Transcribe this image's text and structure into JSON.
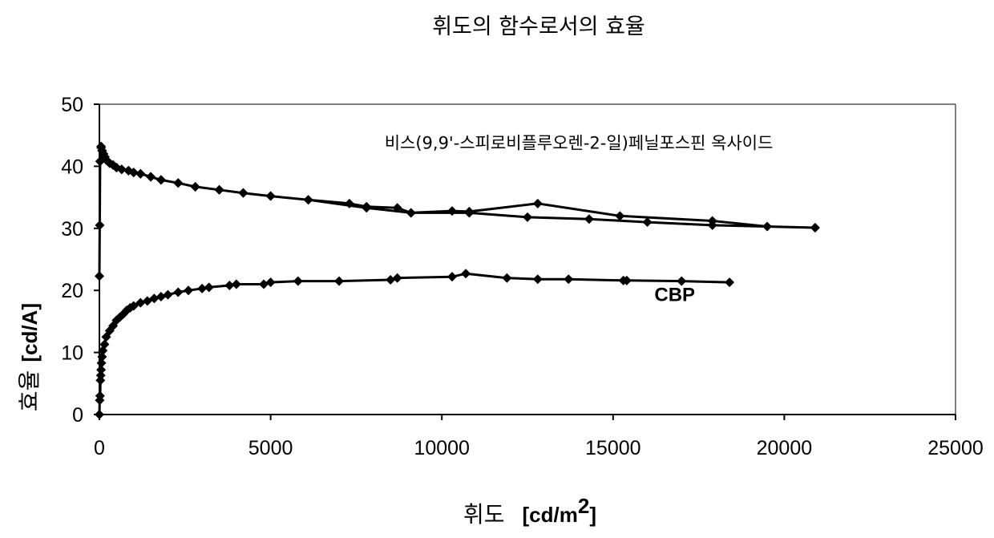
{
  "chart_data": {
    "type": "line",
    "title": "휘도의 함수로서의 효율",
    "xlabel": "휘도",
    "xlabel_unit": "[cd/m",
    "xlabel_unit_sup": "2",
    "xlabel_unit_end": "]",
    "ylabel": "효율",
    "ylabel_unit": "[cd/A]",
    "xlim": [
      0,
      25000
    ],
    "ylim": [
      0,
      50
    ],
    "xticks": [
      "0",
      "5000",
      "10000",
      "15000",
      "20000",
      "25000"
    ],
    "yticks": [
      "0",
      "10",
      "20",
      "30",
      "40",
      "50"
    ],
    "grid": false,
    "series": [
      {
        "name": "비스(9,9'-스피로비플루오렌-2-일)페닐포스핀 옥사이드",
        "x": [
          0,
          10,
          20,
          50,
          80,
          120,
          160,
          200,
          300,
          400,
          500,
          650,
          850,
          1000,
          1200,
          1500,
          1800,
          2300,
          2800,
          3500,
          4200,
          5000,
          6100,
          7300,
          7800,
          8700,
          9100,
          10300,
          10800,
          12800,
          15200,
          17900,
          19500,
          20900,
          20900,
          17900,
          16000,
          14300,
          12500,
          10800,
          9100,
          7800,
          6100,
          5000,
          4200,
          3500,
          2800,
          2300,
          1800,
          1500,
          1200,
          1000,
          850,
          650,
          500,
          400,
          300,
          200,
          160,
          120,
          80,
          50,
          20
        ],
        "y": [
          22.3,
          30.5,
          40.8,
          43.0,
          42.5,
          42.0,
          41.5,
          41.0,
          40.5,
          40.2,
          39.8,
          39.5,
          39.3,
          39.0,
          38.8,
          38.3,
          37.8,
          37.3,
          36.7,
          36.2,
          35.7,
          35.2,
          34.6,
          34.0,
          33.5,
          33.3,
          32.5,
          32.8,
          32.7,
          34.0,
          32.0,
          31.2,
          30.3,
          30.1,
          30.1,
          30.5,
          31.0,
          31.5,
          31.8,
          32.5,
          32.5,
          33.3,
          34.6,
          35.2,
          35.7,
          36.2,
          36.7,
          37.3,
          37.8,
          38.3,
          38.8,
          39.0,
          39.3,
          39.5,
          39.8,
          40.2,
          40.5,
          41.0,
          41.5,
          42.0,
          42.5,
          43.2,
          40.8
        ]
      },
      {
        "name": "CBP",
        "x": [
          0,
          10,
          20,
          30,
          40,
          50,
          60,
          80,
          100,
          150,
          200,
          300,
          400,
          500,
          600,
          700,
          800,
          900,
          1000,
          1200,
          1400,
          1600,
          1800,
          2000,
          2300,
          2600,
          3000,
          3200,
          3800,
          4000,
          4800,
          5000,
          5800,
          7000,
          8500,
          8700,
          10300,
          10700,
          11900,
          12800,
          13700,
          15300,
          15400,
          17000,
          18400
        ],
        "y": [
          0.0,
          2.3,
          3.0,
          5.5,
          6.3,
          7.2,
          8.3,
          9.3,
          10.3,
          11.3,
          12.5,
          13.5,
          14.3,
          15.2,
          15.7,
          16.2,
          16.8,
          17.2,
          17.5,
          18.0,
          18.3,
          18.7,
          19.0,
          19.3,
          19.7,
          20.0,
          20.3,
          20.5,
          20.8,
          21.0,
          21.0,
          21.3,
          21.5,
          21.5,
          21.7,
          22.0,
          22.2,
          22.7,
          22.0,
          21.8,
          21.8,
          21.6,
          21.6,
          21.5,
          21.3
        ]
      }
    ],
    "annotations": [
      {
        "text": "비스(9,9'-스피로비플루오렌-2-일)페닐포스핀 옥사이드",
        "x": 14000,
        "y": 42.8
      },
      {
        "text": "CBP",
        "x": 16800,
        "y": 18.3
      }
    ]
  }
}
